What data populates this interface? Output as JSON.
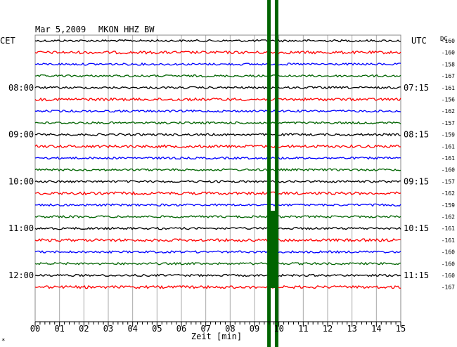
{
  "header": {
    "date": "Mar 5,2009",
    "station": "MKON HHZ BW"
  },
  "left_axis_label": "CET",
  "right_axis_label": "UTC",
  "dc_label": "DC",
  "corner_mark": "*",
  "chart_data": {
    "type": "line",
    "xlabel": "Zeit [min]",
    "xlim": [
      0,
      15
    ],
    "x_ticks": [
      "00",
      "01",
      "02",
      "03",
      "04",
      "05",
      "06",
      "07",
      "08",
      "09",
      "10",
      "11",
      "12",
      "13",
      "14",
      "15"
    ],
    "left_time_labels": [
      {
        "trace": 4,
        "label": "08:00"
      },
      {
        "trace": 8,
        "label": "09:00"
      },
      {
        "trace": 12,
        "label": "10:00"
      },
      {
        "trace": 16,
        "label": "11:00"
      },
      {
        "trace": 20,
        "label": "12:00"
      }
    ],
    "right_time_labels": [
      {
        "trace": 4,
        "label": "07:15"
      },
      {
        "trace": 8,
        "label": "08:15"
      },
      {
        "trace": 12,
        "label": "09:15"
      },
      {
        "trace": 16,
        "label": "10:15"
      },
      {
        "trace": 20,
        "label": "11:15"
      }
    ],
    "dc_offsets": [
      "-160",
      "-160",
      "-158",
      "-167",
      "-161",
      "-156",
      "-162",
      "-157",
      "-159",
      "-161",
      "-161",
      "-160",
      "-157",
      "-162",
      "-159",
      "-162",
      "-161",
      "-161",
      "-160",
      "-160",
      "-160",
      "-167"
    ],
    "trace_colors": [
      "#000000",
      "#ff0000",
      "#0000ff",
      "#006400"
    ],
    "grid": true,
    "event": {
      "color": "#006400",
      "x_minutes": 9.55,
      "x_minutes_end": 9.95
    }
  }
}
